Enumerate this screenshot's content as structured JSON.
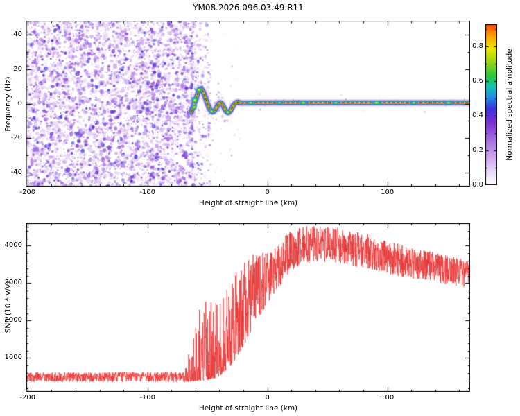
{
  "title": "YM08.2026.096.03.49.R11",
  "chart_data": [
    {
      "type": "heatmap",
      "title": "YM08.2026.096.03.49.R11",
      "xlabel": "Height of straight line (km)",
      "ylabel": "Frequency (Hz)",
      "xlim": [
        -201,
        169
      ],
      "ylim": [
        -48,
        48
      ],
      "xticks": [
        -200,
        -100,
        0,
        100
      ],
      "xtick_labels": [
        "-200",
        "-100",
        "0",
        "100"
      ],
      "yticks": [
        -40,
        -20,
        0,
        20,
        40
      ],
      "ytick_labels": [
        "-40",
        "-20",
        "0",
        "20",
        "40"
      ],
      "grid": false,
      "colorbar": {
        "label": "Normalized spectral amplitude",
        "ticks": [
          0,
          0.2,
          0.4,
          0.6,
          0.8
        ],
        "tick_labels": [
          "0.0",
          "0.2",
          "0.4",
          "0.6",
          "0.8"
        ],
        "range": [
          0,
          0.93
        ]
      },
      "colormap": [
        [
          0.0,
          "#ffffff"
        ],
        [
          0.07,
          "#ecdcf8"
        ],
        [
          0.16,
          "#cfa6ee"
        ],
        [
          0.27,
          "#a269e0"
        ],
        [
          0.36,
          "#7a2fd2"
        ],
        [
          0.44,
          "#4030dd"
        ],
        [
          0.51,
          "#1f8fe8"
        ],
        [
          0.57,
          "#12c4b4"
        ],
        [
          0.63,
          "#27c83a"
        ],
        [
          0.71,
          "#96d414"
        ],
        [
          0.79,
          "#eae800"
        ],
        [
          0.86,
          "#ffa400"
        ],
        [
          0.93,
          "#ff4d0d"
        ],
        [
          1.0,
          "#d40026"
        ]
      ],
      "noise": {
        "description": "dense low-amplitude purple speckle noise at all frequencies left of the echo onset",
        "dense_end_km": -63,
        "fade_span_km": 16
      },
      "trace": [
        [
          -63.5,
          -5
        ],
        [
          -61,
          0
        ],
        [
          -59,
          4
        ],
        [
          -57,
          8
        ],
        [
          -55,
          9
        ],
        [
          -53,
          6
        ],
        [
          -51,
          2
        ],
        [
          -49,
          -2
        ],
        [
          -47,
          -4.5
        ],
        [
          -45,
          -5
        ],
        [
          -43,
          -3
        ],
        [
          -41,
          -0.5
        ],
        [
          -39,
          1
        ],
        [
          -37,
          -1
        ],
        [
          -35,
          -4
        ],
        [
          -33,
          -5.5
        ],
        [
          -31,
          -4.5
        ],
        [
          -29,
          -2
        ],
        [
          -27,
          0.5
        ],
        [
          -25,
          1
        ],
        [
          -22,
          0.3
        ],
        [
          -15,
          0.5
        ],
        [
          0,
          0.5
        ],
        [
          50,
          0.5
        ],
        [
          100,
          0.5
        ],
        [
          169,
          0.5
        ]
      ],
      "trace_blobs": [
        {
          "h": -60.5,
          "f": 2,
          "rx": 5,
          "ry": 5
        },
        {
          "h": -57,
          "f": 8,
          "rx": 5,
          "ry": 4
        },
        {
          "h": -61,
          "f": -2,
          "rx": 4,
          "ry": 3.5
        },
        {
          "h": -46.5,
          "f": -4.5,
          "rx": 4,
          "ry": 3
        },
        {
          "h": -33,
          "f": -5,
          "rx": 4,
          "ry": 3
        },
        {
          "h": -14,
          "f": 0.5,
          "rx": 5,
          "ry": 2.6
        },
        {
          "h": 10,
          "f": 0.5,
          "rx": 4.5,
          "ry": 2.4
        },
        {
          "h": 30,
          "f": 0.5,
          "rx": 6,
          "ry": 3
        },
        {
          "h": 57,
          "f": 0.5,
          "rx": 5,
          "ry": 2.6
        },
        {
          "h": 91,
          "f": 0.5,
          "rx": 7,
          "ry": 3.2
        },
        {
          "h": 122,
          "f": 0.5,
          "rx": 5,
          "ry": 2.7
        },
        {
          "h": 151,
          "f": 0.5,
          "rx": 6,
          "ry": 3
        }
      ]
    },
    {
      "type": "line",
      "xlabel": "Height of straight line (km)",
      "ylabel": "SNR (10 * v/v)",
      "line_color": "#e83232",
      "xlim": [
        -201,
        169
      ],
      "ylim": [
        100,
        4600
      ],
      "xticks": [
        -200,
        -100,
        0,
        100
      ],
      "xtick_labels": [
        "-200",
        "-100",
        "0",
        "100"
      ],
      "yticks": [
        1000,
        2000,
        3000,
        4000
      ],
      "ytick_labels": [
        "1000",
        "2000",
        "3000",
        "4000"
      ],
      "envelope_keypoints": [
        [
          -201,
          360,
          620,
          1.0
        ],
        [
          -70,
          360,
          640,
          1.0
        ],
        [
          -64,
          370,
          1300,
          3.2
        ],
        [
          -59,
          390,
          2450,
          3.2
        ],
        [
          -53,
          400,
          2750,
          2.8
        ],
        [
          -47,
          430,
          2600,
          2.4
        ],
        [
          -41,
          480,
          2450,
          2.0
        ],
        [
          -35,
          650,
          2900,
          1.7
        ],
        [
          -29,
          850,
          3150,
          1.4
        ],
        [
          -23,
          1100,
          3500,
          1.25
        ],
        [
          -17,
          1450,
          3800,
          1.15
        ],
        [
          -11,
          1850,
          3750,
          1.05
        ],
        [
          -5,
          2150,
          3850,
          1.0
        ],
        [
          1,
          2450,
          3950,
          0.95
        ],
        [
          9,
          2850,
          4150,
          0.9
        ],
        [
          17,
          3200,
          4350,
          0.9
        ],
        [
          27,
          3450,
          4500,
          0.9
        ],
        [
          40,
          3550,
          4550,
          0.9
        ],
        [
          55,
          3550,
          4500,
          0.9
        ],
        [
          70,
          3450,
          4400,
          0.9
        ],
        [
          85,
          3350,
          4300,
          0.9
        ],
        [
          100,
          3250,
          4150,
          0.9
        ],
        [
          115,
          3150,
          4000,
          0.9
        ],
        [
          130,
          3050,
          3900,
          0.9
        ],
        [
          145,
          2980,
          3780,
          0.9
        ],
        [
          158,
          2920,
          3680,
          0.9
        ],
        [
          169,
          2880,
          3580,
          0.9
        ]
      ]
    }
  ]
}
